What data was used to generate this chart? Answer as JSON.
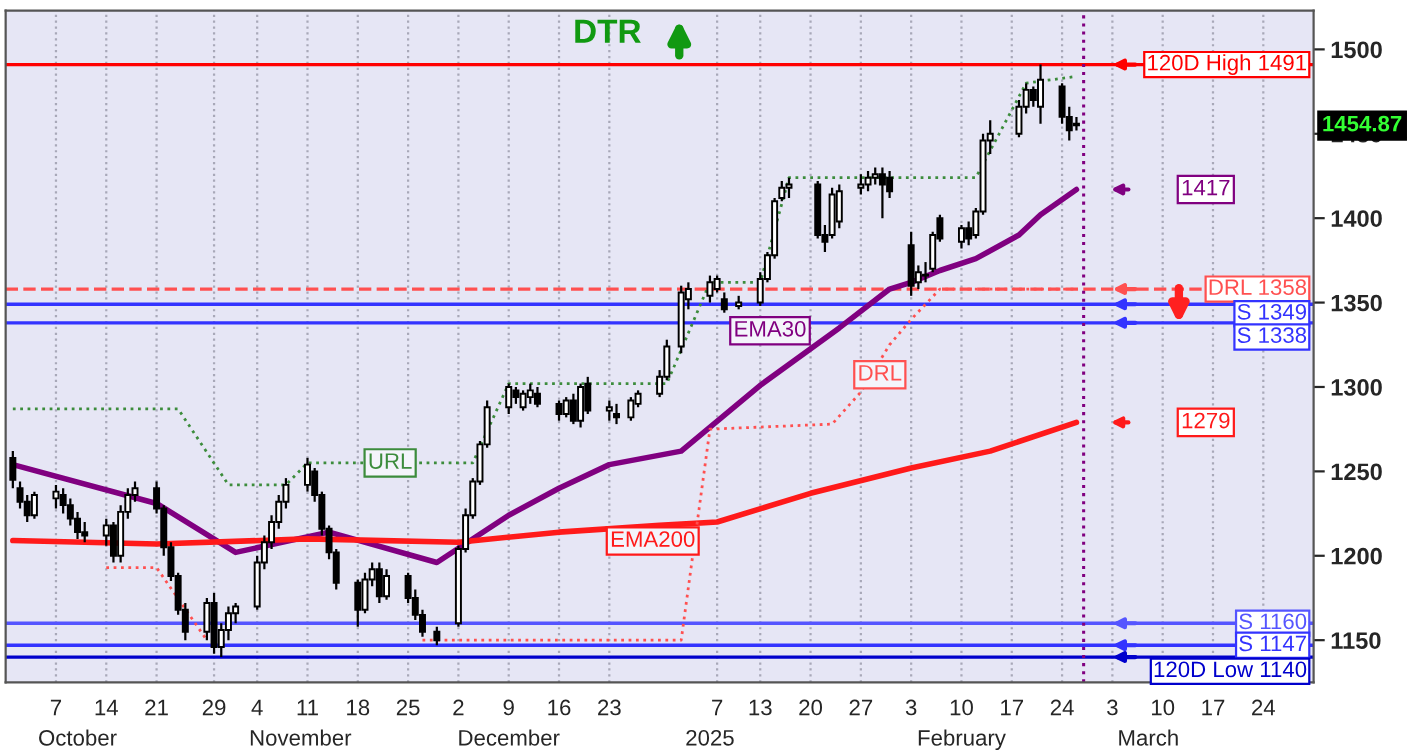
{
  "chart_data": {
    "type": "candlestick",
    "title": "DTR",
    "x": [
      "2024-10-01",
      "2024-10-02",
      "2024-10-03",
      "2024-10-04",
      "2024-10-07",
      "2024-10-08",
      "2024-10-09",
      "2024-10-10",
      "2024-10-11",
      "2024-10-14",
      "2024-10-15",
      "2024-10-16",
      "2024-10-17",
      "2024-10-18",
      "2024-10-21",
      "2024-10-22",
      "2024-10-23",
      "2024-10-24",
      "2024-10-25",
      "2024-10-28",
      "2024-10-29",
      "2024-10-30",
      "2024-10-31",
      "2024-11-01",
      "2024-11-04",
      "2024-11-05",
      "2024-11-06",
      "2024-11-07",
      "2024-11-08",
      "2024-11-11",
      "2024-11-12",
      "2024-11-13",
      "2024-11-14",
      "2024-11-15",
      "2024-11-18",
      "2024-11-19",
      "2024-11-20",
      "2024-11-21",
      "2024-11-22",
      "2024-11-25",
      "2024-11-26",
      "2024-11-27",
      "2024-11-29",
      "2024-12-02",
      "2024-12-03",
      "2024-12-04",
      "2024-12-05",
      "2024-12-06",
      "2024-12-09",
      "2024-12-10",
      "2024-12-11",
      "2024-12-12",
      "2024-12-13",
      "2024-12-16",
      "2024-12-17",
      "2024-12-18",
      "2024-12-19",
      "2024-12-20",
      "2024-12-23",
      "2024-12-24",
      "2024-12-26",
      "2024-12-27",
      "2024-12-30",
      "2024-12-31",
      "2025-01-02",
      "2025-01-03",
      "2025-01-06",
      "2025-01-07",
      "2025-01-08",
      "2025-01-10",
      "2025-01-13",
      "2025-01-14",
      "2025-01-15",
      "2025-01-16",
      "2025-01-17",
      "2025-01-21",
      "2025-01-22",
      "2025-01-23",
      "2025-01-24",
      "2025-01-27",
      "2025-01-28",
      "2025-01-29",
      "2025-01-30",
      "2025-01-31",
      "2025-02-03",
      "2025-02-04",
      "2025-02-05",
      "2025-02-06",
      "2025-02-07",
      "2025-02-10",
      "2025-02-11",
      "2025-02-12",
      "2025-02-13",
      "2025-02-14",
      "2025-02-18",
      "2025-02-19",
      "2025-02-20",
      "2025-02-21",
      "2025-02-24",
      "2025-02-25",
      "2025-02-26"
    ],
    "ohlc": [
      [
        1258,
        1262,
        1240,
        1245
      ],
      [
        1240,
        1244,
        1228,
        1232
      ],
      [
        1232,
        1236,
        1220,
        1224
      ],
      [
        1224,
        1238,
        1222,
        1236
      ],
      [
        1234,
        1242,
        1228,
        1238
      ],
      [
        1236,
        1240,
        1225,
        1230
      ],
      [
        1230,
        1234,
        1218,
        1222
      ],
      [
        1222,
        1226,
        1210,
        1214
      ],
      [
        1214,
        1220,
        1208,
        1212
      ],
      [
        1212,
        1222,
        1206,
        1218
      ],
      [
        1218,
        1220,
        1196,
        1200
      ],
      [
        1200,
        1230,
        1196,
        1226
      ],
      [
        1226,
        1240,
        1222,
        1236
      ],
      [
        1236,
        1244,
        1232,
        1240
      ],
      [
        1240,
        1244,
        1225,
        1228
      ],
      [
        1228,
        1230,
        1200,
        1205
      ],
      [
        1205,
        1208,
        1185,
        1188
      ],
      [
        1188,
        1190,
        1165,
        1168
      ],
      [
        1168,
        1172,
        1150,
        1155
      ],
      [
        1155,
        1175,
        1150,
        1172
      ],
      [
        1172,
        1178,
        1142,
        1146
      ],
      [
        1146,
        1160,
        1140,
        1156
      ],
      [
        1156,
        1170,
        1150,
        1166
      ],
      [
        1166,
        1172,
        1160,
        1170
      ],
      [
        1170,
        1200,
        1168,
        1196
      ],
      [
        1196,
        1212,
        1192,
        1208
      ],
      [
        1208,
        1224,
        1204,
        1220
      ],
      [
        1220,
        1236,
        1216,
        1232
      ],
      [
        1232,
        1246,
        1228,
        1242
      ],
      [
        1242,
        1258,
        1238,
        1254
      ],
      [
        1250,
        1252,
        1232,
        1236
      ],
      [
        1236,
        1238,
        1212,
        1216
      ],
      [
        1216,
        1218,
        1198,
        1202
      ],
      [
        1202,
        1204,
        1180,
        1184
      ],
      [
        1184,
        1186,
        1158,
        1168
      ],
      [
        1168,
        1190,
        1166,
        1186
      ],
      [
        1186,
        1196,
        1182,
        1192
      ],
      [
        1192,
        1196,
        1172,
        1176
      ],
      [
        1176,
        1192,
        1174,
        1188
      ],
      [
        1188,
        1190,
        1172,
        1175
      ],
      [
        1175,
        1180,
        1162,
        1165
      ],
      [
        1165,
        1168,
        1152,
        1155
      ],
      [
        1155,
        1158,
        1147,
        1150
      ],
      [
        1160,
        1206,
        1158,
        1204
      ],
      [
        1204,
        1228,
        1202,
        1224
      ],
      [
        1224,
        1246,
        1222,
        1244
      ],
      [
        1244,
        1268,
        1242,
        1266
      ],
      [
        1266,
        1292,
        1264,
        1288
      ],
      [
        1288,
        1302,
        1284,
        1300
      ],
      [
        1298,
        1300,
        1290,
        1294
      ],
      [
        1288,
        1298,
        1286,
        1296
      ],
      [
        1294,
        1302,
        1290,
        1298
      ],
      [
        1296,
        1300,
        1288,
        1290
      ],
      [
        1290,
        1292,
        1280,
        1284
      ],
      [
        1284,
        1294,
        1282,
        1292
      ],
      [
        1292,
        1296,
        1278,
        1280
      ],
      [
        1280,
        1302,
        1276,
        1300
      ],
      [
        1302,
        1306,
        1284,
        1286
      ],
      [
        1286,
        1292,
        1280,
        1288
      ],
      [
        1284,
        1290,
        1278,
        1282
      ],
      [
        1282,
        1294,
        1280,
        1292
      ],
      [
        1290,
        1298,
        1288,
        1296
      ],
      [
        1296,
        1310,
        1294,
        1306
      ],
      [
        1306,
        1328,
        1304,
        1324
      ],
      [
        1324,
        1360,
        1320,
        1356
      ],
      [
        1352,
        1362,
        1346,
        1358
      ],
      [
        1354,
        1366,
        1350,
        1362
      ],
      [
        1358,
        1366,
        1356,
        1364
      ],
      [
        1352,
        1356,
        1344,
        1346
      ],
      [
        1348,
        1354,
        1346,
        1350
      ],
      [
        1350,
        1368,
        1348,
        1364
      ],
      [
        1364,
        1380,
        1362,
        1378
      ],
      [
        1378,
        1412,
        1376,
        1410
      ],
      [
        1412,
        1422,
        1410,
        1418
      ],
      [
        1418,
        1424,
        1412,
        1420
      ],
      [
        1420,
        1422,
        1388,
        1390
      ],
      [
        1390,
        1396,
        1380,
        1386
      ],
      [
        1390,
        1418,
        1388,
        1414
      ],
      [
        1398,
        1420,
        1394,
        1416
      ],
      [
        1418,
        1426,
        1414,
        1420
      ],
      [
        1420,
        1428,
        1416,
        1424
      ],
      [
        1424,
        1430,
        1420,
        1426
      ],
      [
        1426,
        1430,
        1400,
        1420
      ],
      [
        1424,
        1428,
        1412,
        1416
      ],
      [
        1384,
        1392,
        1354,
        1360
      ],
      [
        1362,
        1372,
        1358,
        1368
      ],
      [
        1366,
        1374,
        1362,
        1366
      ],
      [
        1370,
        1392,
        1368,
        1390
      ],
      [
        1400,
        1402,
        1386,
        1388
      ],
      [
        1386,
        1396,
        1382,
        1394
      ],
      [
        1394,
        1398,
        1384,
        1388
      ],
      [
        1390,
        1406,
        1388,
        1404
      ],
      [
        1404,
        1450,
        1402,
        1446
      ],
      [
        1446,
        1458,
        1438,
        1450
      ],
      [
        1450,
        1470,
        1448,
        1466
      ],
      [
        1466,
        1480,
        1462,
        1476
      ],
      [
        1476,
        1478,
        1466,
        1470
      ],
      [
        1466,
        1491,
        1456,
        1482
      ],
      [
        1478,
        1480,
        1456,
        1460
      ],
      [
        1460,
        1466,
        1446,
        1452
      ],
      [
        1456,
        1460,
        1452,
        1455
      ]
    ],
    "series": [
      {
        "name": "EMA30",
        "type": "line",
        "color": "#800080",
        "line_style": "solid",
        "x": [
          "2024-10-01",
          "2024-10-21",
          "2024-11-01",
          "2024-11-14",
          "2024-11-29",
          "2024-12-09",
          "2024-12-16",
          "2024-12-23",
          "2025-01-02",
          "2025-01-13",
          "2025-01-24",
          "2025-01-31",
          "2025-02-03",
          "2025-02-07",
          "2025-02-12",
          "2025-02-18",
          "2025-02-21",
          "2025-02-26"
        ],
        "values": [
          1254,
          1231,
          1202,
          1214,
          1196,
          1224,
          1240,
          1254,
          1262,
          1301,
          1335,
          1358,
          1362,
          1369,
          1376,
          1390,
          1402,
          1417
        ]
      },
      {
        "name": "EMA200",
        "type": "line",
        "color": "#ff1a1a",
        "line_style": "solid",
        "x": [
          "2024-10-01",
          "2024-10-21",
          "2024-11-11",
          "2024-12-02",
          "2024-12-16",
          "2024-12-30",
          "2025-01-07",
          "2025-01-20",
          "2025-02-03",
          "2025-02-14",
          "2025-02-26"
        ],
        "values": [
          1209,
          1207,
          1210,
          1208,
          1214,
          1218,
          1220,
          1237,
          1252,
          1262,
          1279
        ]
      },
      {
        "name": "URL",
        "type": "line",
        "color": "#3c8c3c",
        "line_style": "dotted",
        "x": [
          "2024-10-01",
          "2024-10-24",
          "2024-10-31",
          "2024-11-08",
          "2024-11-11",
          "2024-12-04",
          "2024-12-09",
          "2024-12-31",
          "2025-01-06",
          "2025-01-13",
          "2025-01-17",
          "2025-02-12",
          "2025-02-19",
          "2025-02-26"
        ],
        "values": [
          1287,
          1287,
          1242,
          1242,
          1255,
          1255,
          1302,
          1302,
          1362,
          1362,
          1424,
          1424,
          1480,
          1484
        ]
      },
      {
        "name": "DRL",
        "type": "line",
        "color": "#ff5050",
        "line_style": "dotted",
        "x": [
          "2024-10-14",
          "2024-10-21",
          "2024-10-28",
          "2024-11-15",
          "2024-11-27",
          "2025-01-02",
          "2025-01-06",
          "2025-01-23",
          "2025-01-27",
          "2025-01-31",
          "2025-02-03",
          "2025-02-07",
          "2025-02-26"
        ],
        "values": [
          1193,
          1193,
          1150,
          null,
          1150,
          1150,
          1275,
          1278,
          1297,
          1325,
          1340,
          1358,
          1358
        ]
      }
    ],
    "xlim": [
      "2024-09-30",
      "2025-03-31"
    ],
    "xticks": [
      {
        "value": "2024-10-07",
        "label": "7"
      },
      {
        "value": "2024-10-14",
        "label": "14"
      },
      {
        "value": "2024-10-21",
        "label": "21"
      },
      {
        "value": "2024-10-29",
        "label": "29"
      },
      {
        "value": "2024-11-04",
        "label": "4"
      },
      {
        "value": "2024-11-11",
        "label": "11"
      },
      {
        "value": "2024-11-18",
        "label": "18"
      },
      {
        "value": "2024-11-25",
        "label": "25"
      },
      {
        "value": "2024-12-02",
        "label": "2"
      },
      {
        "value": "2024-12-09",
        "label": "9"
      },
      {
        "value": "2024-12-16",
        "label": "16"
      },
      {
        "value": "2024-12-23",
        "label": "23"
      },
      {
        "value": "2025-01-07",
        "label": "7"
      },
      {
        "value": "2025-01-13",
        "label": "13"
      },
      {
        "value": "2025-01-20",
        "label": "20"
      },
      {
        "value": "2025-01-27",
        "label": "27"
      },
      {
        "value": "2025-02-03",
        "label": "3"
      },
      {
        "value": "2025-02-10",
        "label": "10"
      },
      {
        "value": "2025-02-17",
        "label": "17"
      },
      {
        "value": "2025-02-24",
        "label": "24"
      },
      {
        "value": "2025-03-03",
        "label": "3"
      },
      {
        "value": "2025-03-10",
        "label": "10"
      },
      {
        "value": "2025-03-17",
        "label": "17"
      },
      {
        "value": "2025-03-24",
        "label": "24"
      }
    ],
    "x2lim": [
      "2024-09-30",
      "2025-03-31"
    ],
    "x2ticks": [
      {
        "value": "2024-10-10",
        "label": "October"
      },
      {
        "value": "2024-11-10",
        "label": "November"
      },
      {
        "value": "2024-12-09",
        "label": "December"
      },
      {
        "value": "2025-01-06",
        "label": "2025"
      },
      {
        "value": "2025-02-10",
        "label": "February"
      },
      {
        "value": "2025-03-08",
        "label": "March"
      }
    ],
    "ylim": [
      1125,
      1523
    ],
    "yticks": [
      1150,
      1200,
      1250,
      1300,
      1350,
      1400,
      1450,
      1500
    ],
    "grid": "x",
    "legend": false,
    "ref_lines": [
      {
        "axis": "y",
        "value": 1491,
        "label": "120D High 1491",
        "color": "#ff0000",
        "line_style": "solid"
      },
      {
        "axis": "y",
        "value": 1358,
        "label": "DRL 1358",
        "color": "#ff5050",
        "line_style": "dashed"
      },
      {
        "axis": "y",
        "value": 1349,
        "label": "S 1349",
        "color": "#3333ff",
        "line_style": "solid"
      },
      {
        "axis": "y",
        "value": 1338,
        "label": "S 1338",
        "color": "#3333ff",
        "line_style": "solid"
      },
      {
        "axis": "y",
        "value": 1160,
        "label": "S 1160",
        "color": "#5555ff",
        "line_style": "solid"
      },
      {
        "axis": "y",
        "value": 1147,
        "label": "S 1147",
        "color": "#3333ff",
        "line_style": "solid"
      },
      {
        "axis": "y",
        "value": 1140,
        "label": "120D Low 1140",
        "color": "#0000cc",
        "line_style": "solid"
      },
      {
        "axis": "x",
        "value": "2025-02-27",
        "color": "#800080",
        "line_style": "dotted"
      }
    ],
    "annotations": [
      {
        "text": "1417",
        "x": "2025-03-16",
        "y": 1417
      },
      {
        "text": "1279",
        "x": "2025-03-16",
        "y": 1279
      },
      {
        "text": "1454.87",
        "y": 1454.87
      }
    ]
  }
}
